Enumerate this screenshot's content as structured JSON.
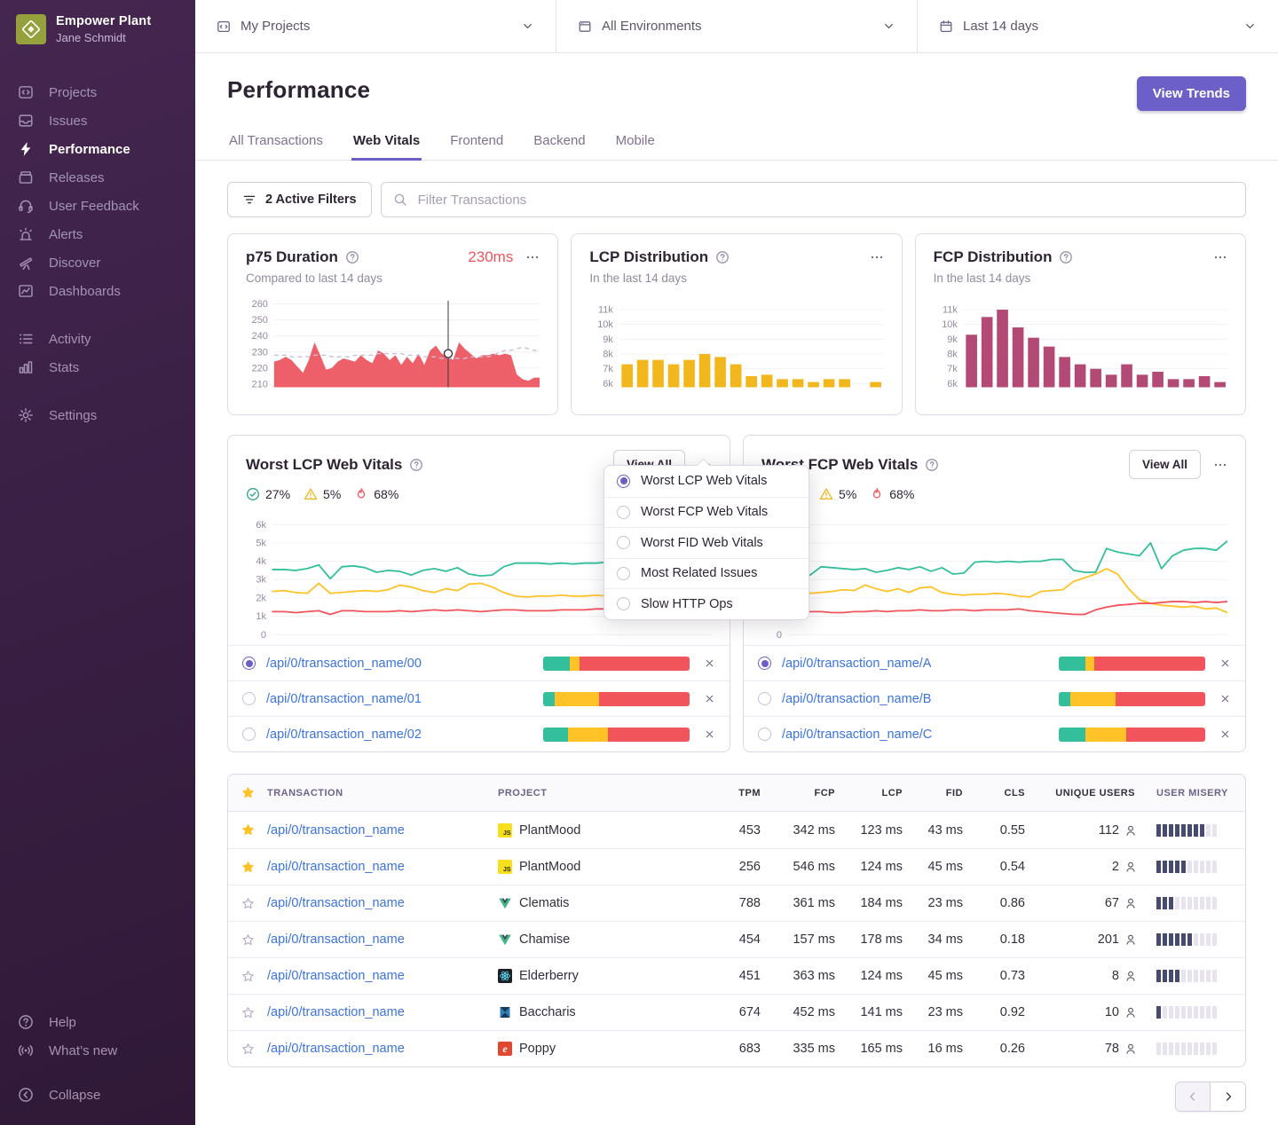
{
  "sidebar": {
    "org": "Empower Plant",
    "user": "Jane Schmidt",
    "nav_primary": [
      {
        "label": "Projects",
        "icon": "projects-icon"
      },
      {
        "label": "Issues",
        "icon": "issues-icon"
      },
      {
        "label": "Performance",
        "icon": "performance-icon",
        "active": true
      },
      {
        "label": "Releases",
        "icon": "releases-icon"
      },
      {
        "label": "User Feedback",
        "icon": "user-feedback-icon"
      },
      {
        "label": "Alerts",
        "icon": "alerts-icon"
      },
      {
        "label": "Discover",
        "icon": "discover-icon"
      },
      {
        "label": "Dashboards",
        "icon": "dashboards-icon"
      }
    ],
    "nav_secondary": [
      {
        "label": "Activity",
        "icon": "activity-icon"
      },
      {
        "label": "Stats",
        "icon": "stats-icon"
      }
    ],
    "nav_tertiary": [
      {
        "label": "Settings",
        "icon": "settings-icon"
      }
    ],
    "nav_bottom": [
      {
        "label": "Help",
        "icon": "help-icon"
      },
      {
        "label": "What’s new",
        "icon": "whats-new-icon"
      }
    ],
    "collapse": {
      "label": "Collapse",
      "icon": "collapse-icon"
    }
  },
  "topbar": {
    "selectors": [
      {
        "label": "My Projects",
        "icon": "my-projects-icon"
      },
      {
        "label": "All Environments",
        "icon": "environments-icon"
      },
      {
        "label": "Last 14 days",
        "icon": "calendar-icon"
      }
    ]
  },
  "header": {
    "title": "Performance",
    "view_trends": "View Trends",
    "tabs": [
      {
        "label": "All Transactions"
      },
      {
        "label": "Web Vitals",
        "active": true
      },
      {
        "label": "Frontend"
      },
      {
        "label": "Backend"
      },
      {
        "label": "Mobile"
      }
    ]
  },
  "filters": {
    "active_label": "2 Active Filters",
    "search_placeholder": "Filter Transactions"
  },
  "vitals": {
    "lcp": {
      "title": "Worst LCP Web Vitals",
      "view_all": "View All",
      "legend": {
        "good": "27%",
        "meh": "5%",
        "poor": "68%"
      },
      "items": [
        {
          "name": "/api/0/transaction_name/00",
          "selected": true,
          "bar": [
            18,
            7,
            75
          ]
        },
        {
          "name": "/api/0/transaction_name/01",
          "selected": false,
          "bar": [
            8,
            30,
            62
          ]
        },
        {
          "name": "/api/0/transaction_name/02",
          "selected": false,
          "bar": [
            17,
            27,
            56
          ]
        }
      ]
    },
    "fcp": {
      "title": "Worst FCP Web Vitals",
      "view_all": "View All",
      "legend": {
        "good": "27%",
        "meh": "5%",
        "poor": "68%"
      },
      "items": [
        {
          "name": "/api/0/transaction_name/A",
          "selected": true,
          "bar": [
            18,
            6,
            76
          ]
        },
        {
          "name": "/api/0/transaction_name/B",
          "selected": false,
          "bar": [
            8,
            31,
            61
          ]
        },
        {
          "name": "/api/0/transaction_name/C",
          "selected": false,
          "bar": [
            18,
            28,
            54
          ]
        }
      ]
    }
  },
  "menu": {
    "options": [
      {
        "label": "Worst LCP Web Vitals",
        "selected": true
      },
      {
        "label": "Worst FCP Web Vitals",
        "selected": false
      },
      {
        "label": "Worst FID Web Vitals",
        "selected": false
      },
      {
        "label": "Most Related Issues",
        "selected": false
      },
      {
        "label": "Slow HTTP Ops",
        "selected": false
      }
    ]
  },
  "table": {
    "columns": [
      "TRANSACTION",
      "PROJECT",
      "TPM",
      "FCP",
      "LCP",
      "FID",
      "CLS",
      "UNIQUE USERS",
      "USER MISERY"
    ],
    "rows": [
      {
        "starred": true,
        "transaction": "/api/0/transaction_name",
        "project": "PlantMood",
        "platform": "js",
        "tpm": "453",
        "fcp": "342 ms",
        "lcp": "123 ms",
        "fid": "43 ms",
        "cls": "0.55",
        "users": "112",
        "misery": 8
      },
      {
        "starred": true,
        "transaction": "/api/0/transaction_name",
        "project": "PlantMood",
        "platform": "js",
        "tpm": "256",
        "fcp": "546 ms",
        "lcp": "124 ms",
        "fid": "45 ms",
        "cls": "0.54",
        "users": "2",
        "misery": 5
      },
      {
        "starred": false,
        "transaction": "/api/0/transaction_name",
        "project": "Clematis",
        "platform": "vue",
        "tpm": "788",
        "fcp": "361 ms",
        "lcp": "184 ms",
        "fid": "23 ms",
        "cls": "0.86",
        "users": "67",
        "misery": 3
      },
      {
        "starred": false,
        "transaction": "/api/0/transaction_name",
        "project": "Chamise",
        "platform": "vue",
        "tpm": "454",
        "fcp": "157 ms",
        "lcp": "178 ms",
        "fid": "34 ms",
        "cls": "0.18",
        "users": "201",
        "misery": 6
      },
      {
        "starred": false,
        "transaction": "/api/0/transaction_name",
        "project": "Elderberry",
        "platform": "react",
        "tpm": "451",
        "fcp": "363 ms",
        "lcp": "124 ms",
        "fid": "45 ms",
        "cls": "0.73",
        "users": "8",
        "misery": 4
      },
      {
        "starred": false,
        "transaction": "/api/0/transaction_name",
        "project": "Baccharis",
        "platform": "x",
        "tpm": "674",
        "fcp": "452 ms",
        "lcp": "141 ms",
        "fid": "23 ms",
        "cls": "0.92",
        "users": "10",
        "misery": 1
      },
      {
        "starred": false,
        "transaction": "/api/0/transaction_name",
        "project": "Poppy",
        "platform": "ember",
        "tpm": "683",
        "fcp": "335 ms",
        "lcp": "165 ms",
        "fid": "16 ms",
        "cls": "0.26",
        "users": "78",
        "misery": 0
      }
    ]
  },
  "colors": {
    "accent": "#6C5FC7",
    "good": "#33BF9B",
    "meh": "#FFC227",
    "poor": "#F2545B",
    "link": "#3C74DD",
    "p75_area": "#EE6069",
    "lcp_bars": "#F1B71C",
    "fcp_bars": "#B34A76"
  },
  "chart_data": [
    {
      "id": "p75_duration",
      "type": "area",
      "title": "p75 Duration",
      "current_value": "230ms",
      "subtitle": "Compared to last 14 days",
      "ylim": [
        208,
        262
      ],
      "ytick_values": [
        260,
        250,
        240,
        230,
        220,
        210
      ],
      "yticks": [
        "260",
        "250",
        "240",
        "230",
        "220",
        "210"
      ],
      "color": "#EE6069",
      "values": [
        224,
        225,
        227,
        225,
        221,
        217,
        225,
        236,
        228,
        219,
        220,
        224,
        226,
        225,
        224,
        228,
        225,
        223,
        231,
        229,
        225,
        228,
        222,
        227,
        223,
        229,
        222,
        231,
        234,
        229,
        227,
        225,
        236,
        232,
        229,
        226,
        228,
        228,
        229,
        228,
        229,
        228,
        216,
        213,
        212,
        214,
        214
      ],
      "baseline_dashed": [
        228,
        228,
        228,
        227,
        227,
        227,
        227,
        228,
        228,
        228,
        227,
        227,
        227,
        227,
        228,
        228,
        228,
        228,
        229,
        229,
        229,
        229,
        229,
        228,
        228,
        228,
        227,
        227,
        227,
        226,
        226,
        226,
        226,
        226,
        227,
        227,
        227,
        227,
        228,
        230,
        231,
        231,
        232,
        233,
        232,
        231,
        231
      ],
      "marker": {
        "x_frac": 0.655,
        "y": 229
      }
    },
    {
      "id": "lcp_distribution",
      "type": "bar",
      "title": "LCP Distribution",
      "subtitle": "In the last 14 days",
      "ylim": [
        5750,
        11600
      ],
      "ytick_values": [
        11000,
        10000,
        9000,
        8000,
        7000,
        6000
      ],
      "yticks": [
        "11k",
        "10k",
        "9k",
        "8k",
        "7k",
        "6k"
      ],
      "color": "#F1B71C",
      "values": [
        7300,
        7600,
        7600,
        7300,
        7600,
        8000,
        7800,
        7300,
        6500,
        6600,
        6300,
        6300,
        6100,
        6300,
        6300,
        0,
        6100
      ]
    },
    {
      "id": "fcp_distribution",
      "type": "bar",
      "title": "FCP Distribution",
      "subtitle": "In the last 14 days",
      "ylim": [
        5750,
        11600
      ],
      "ytick_values": [
        11000,
        10000,
        9000,
        8000,
        7000,
        6000
      ],
      "yticks": [
        "11k",
        "10k",
        "9k",
        "8k",
        "7k",
        "6k"
      ],
      "color": "#B34A76",
      "values": [
        9300,
        10500,
        11000,
        9800,
        9100,
        8500,
        7800,
        7300,
        7000,
        6600,
        7300,
        6600,
        6800,
        6300,
        6300,
        6500,
        6100
      ]
    },
    {
      "id": "worst_lcp",
      "type": "line",
      "title": "Worst LCP Web Vitals",
      "ylim": [
        0,
        6400
      ],
      "ytick_values": [
        6000,
        5000,
        4000,
        3000,
        2000,
        1000,
        0
      ],
      "yticks": [
        "6k",
        "5k",
        "4k",
        "3k",
        "2k",
        "1k",
        "0"
      ],
      "series": [
        {
          "name": "good",
          "color": "#33BF9B",
          "values": [
            3550,
            3550,
            3500,
            3600,
            3800,
            3050,
            3700,
            3750,
            3650,
            3400,
            3500,
            3450,
            3250,
            3500,
            3600,
            3450,
            3650,
            3300,
            3200,
            3250,
            3700,
            3900,
            3900,
            3900,
            3850,
            3900,
            3850,
            3900,
            3900,
            3950,
            4100,
            4100,
            3500,
            3400,
            3400,
            5200,
            5000,
            4850,
            4700
          ]
        },
        {
          "name": "meh",
          "color": "#FFC227",
          "values": [
            2350,
            2400,
            2300,
            2250,
            2800,
            2250,
            2300,
            2350,
            2400,
            2350,
            2450,
            2700,
            2600,
            2400,
            2300,
            2500,
            2400,
            2750,
            2800,
            2600,
            2300,
            2100,
            2050,
            2100,
            2100,
            2150,
            2100,
            2100,
            2150,
            2100,
            2000,
            2000,
            2450,
            2500,
            2600,
            3000,
            3200,
            3350,
            3500
          ]
        },
        {
          "name": "poor",
          "color": "#F2545B",
          "values": [
            1250,
            1250,
            1200,
            1250,
            1300,
            1100,
            1300,
            1300,
            1250,
            1250,
            1250,
            1300,
            1250,
            1300,
            1350,
            1300,
            1350,
            1300,
            1250,
            1300,
            1350,
            1350,
            1300,
            1300,
            1300,
            1350,
            1350,
            1350,
            1400,
            1400,
            1400,
            1350,
            1200,
            1150,
            1100,
            1050,
            1000,
            950,
            950
          ]
        }
      ]
    },
    {
      "id": "worst_fcp",
      "type": "line",
      "title": "Worst FCP Web Vitals",
      "ylim": [
        0,
        6400
      ],
      "ytick_values": [
        6000,
        5000,
        4000,
        3000,
        2000,
        1000,
        0
      ],
      "yticks": [
        "6k",
        "5k",
        "4k",
        "3k",
        "2k",
        "1k",
        "0"
      ],
      "series": [
        {
          "name": "good",
          "color": "#33BF9B",
          "values": [
            3600,
            3300,
            3250,
            3700,
            3650,
            3600,
            3550,
            3600,
            3400,
            3500,
            3650,
            3550,
            3700,
            3450,
            3650,
            3300,
            3350,
            3950,
            4000,
            3950,
            4000,
            3950,
            4000,
            4000,
            4100,
            4100,
            3500,
            3400,
            3400,
            4700,
            4500,
            4400,
            4300,
            5000,
            3600,
            4300,
            4600,
            4700,
            4700,
            4600,
            5100
          ]
        },
        {
          "name": "meh",
          "color": "#FFC227",
          "values": [
            2300,
            2700,
            2250,
            2300,
            2350,
            2450,
            2400,
            2700,
            2500,
            2350,
            2500,
            2300,
            2550,
            2600,
            2300,
            2200,
            2150,
            2200,
            2200,
            2250,
            2200,
            2100,
            2050,
            2350,
            2400,
            2450,
            2900,
            3100,
            3300,
            3600,
            3300,
            2500,
            1900,
            1700,
            1600,
            1550,
            1500,
            1550,
            1400,
            1450,
            1200
          ]
        },
        {
          "name": "poor",
          "color": "#F2545B",
          "values": [
            1150,
            1100,
            1250,
            1250,
            1200,
            1200,
            1250,
            1250,
            1300,
            1250,
            1300,
            1300,
            1350,
            1300,
            1300,
            1350,
            1350,
            1300,
            1350,
            1350,
            1350,
            1400,
            1300,
            1250,
            1200,
            1150,
            1100,
            1100,
            1350,
            1500,
            1600,
            1650,
            1700,
            1700,
            1750,
            1800,
            1800,
            1750,
            1800,
            1750,
            1800
          ]
        }
      ]
    }
  ]
}
